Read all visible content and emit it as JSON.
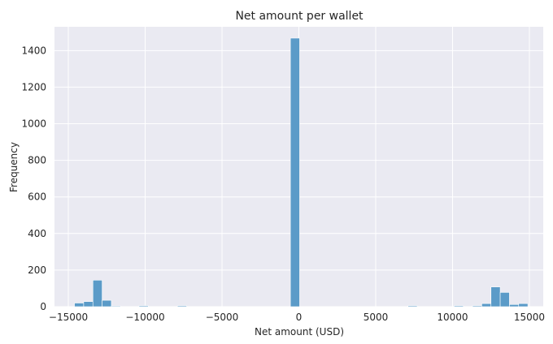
{
  "chart_data": {
    "type": "bar",
    "title": "Net amount per wallet",
    "xlabel": "Net amount (USD)",
    "ylabel": "Frequency",
    "xlim": [
      -15900,
      15900
    ],
    "ylim": [
      0,
      1530
    ],
    "grid": true,
    "x_ticks": [
      -15000,
      -10000,
      -5000,
      0,
      5000,
      10000,
      15000
    ],
    "y_ticks": [
      0,
      200,
      400,
      600,
      800,
      1000,
      1200,
      1400
    ],
    "bin_width": 600,
    "bins": [
      {
        "start": -14600,
        "count": 20
      },
      {
        "start": -14000,
        "count": 28
      },
      {
        "start": -13400,
        "count": 145
      },
      {
        "start": -12800,
        "count": 35
      },
      {
        "start": -12200,
        "count": 4
      },
      {
        "start": -10400,
        "count": 5
      },
      {
        "start": -7900,
        "count": 5
      },
      {
        "start": -550,
        "count": 1468
      },
      {
        "start": 7100,
        "count": 5
      },
      {
        "start": 10100,
        "count": 5
      },
      {
        "start": 11300,
        "count": 5
      },
      {
        "start": 11900,
        "count": 17
      },
      {
        "start": 12500,
        "count": 108
      },
      {
        "start": 13100,
        "count": 78
      },
      {
        "start": 13700,
        "count": 12
      },
      {
        "start": 14300,
        "count": 17
      }
    ],
    "bar_color": "#5b9bc8",
    "background_color": "#eaeaf2",
    "grid_color": "#ffffff"
  }
}
